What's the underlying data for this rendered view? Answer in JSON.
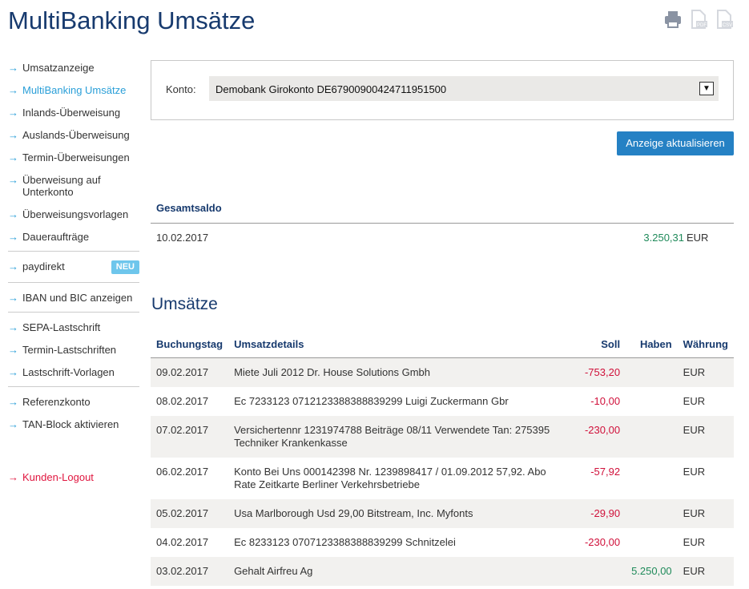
{
  "page": {
    "title": "MultiBanking Umsätze"
  },
  "toolbar": {
    "icons": [
      "print-icon",
      "pdf-icon",
      "csv-icon"
    ],
    "pdf_label": "PDF",
    "csv_label": "CSV"
  },
  "nav": {
    "items": [
      {
        "label": "Umsatzanzeige"
      },
      {
        "label": "MultiBanking Umsätze",
        "active": true
      },
      {
        "label": "Inlands-Überweisung"
      },
      {
        "label": "Auslands-Überweisung"
      },
      {
        "label": "Termin-Überweisungen"
      },
      {
        "label": "Überweisung auf Unterkonto"
      },
      {
        "label": "Überweisungsvorlagen"
      },
      {
        "label": "Daueraufträge"
      },
      {
        "label": "paydirekt",
        "badge": "NEU"
      },
      {
        "label": "IBAN und BIC anzeigen"
      },
      {
        "label": "SEPA-Lastschrift"
      },
      {
        "label": "Termin-Lastschriften"
      },
      {
        "label": "Lastschrift-Vorlagen"
      },
      {
        "label": "Referenzkonto"
      },
      {
        "label": "TAN-Block aktivieren"
      }
    ],
    "logout": "Kunden-Logout"
  },
  "filter": {
    "label": "Konto:",
    "selected": "Demobank Girokonto DE67900900424711951500",
    "button": "Anzeige aktualisieren"
  },
  "saldo": {
    "header": "Gesamtsaldo",
    "date": "10.02.2017",
    "amount": "3.250,31",
    "currency": "EUR"
  },
  "umsaetze": {
    "title": "Umsätze",
    "columns": [
      "Buchungstag",
      "Umsatzdetails",
      "Soll",
      "Haben",
      "Währung"
    ],
    "rows": [
      {
        "date": "09.02.2017",
        "details": "Miete Juli 2012 Dr. House Solutions Gmbh",
        "soll": "-753,20",
        "haben": "",
        "currency": "EUR"
      },
      {
        "date": "08.02.2017",
        "details": "Ec 7233123 0712123388388839299 Luigi Zuckermann Gbr",
        "soll": "-10,00",
        "haben": "",
        "currency": "EUR"
      },
      {
        "date": "07.02.2017",
        "details": "Versichertennr 1231974788 Beiträge 08/11 Verwendete Tan: 275395 Techniker Krankenkasse",
        "soll": "-230,00",
        "haben": "",
        "currency": "EUR"
      },
      {
        "date": "06.02.2017",
        "details": "Konto Bei Uns 000142398 Nr. 1239898417 / 01.09.2012 57,92. Abo Rate Zeitkarte Berliner Verkehrsbetriebe",
        "soll": "-57,92",
        "haben": "",
        "currency": "EUR"
      },
      {
        "date": "05.02.2017",
        "details": "Usa Marlborough Usd 29,00 Bitstream, Inc. Myfonts",
        "soll": "-29,90",
        "haben": "",
        "currency": "EUR"
      },
      {
        "date": "04.02.2017",
        "details": "Ec 8233123 0707123388388839299 Schnitzelei",
        "soll": "-230,00",
        "haben": "",
        "currency": "EUR"
      },
      {
        "date": "03.02.2017",
        "details": "Gehalt Airfreu Ag",
        "soll": "",
        "haben": "5.250,00",
        "currency": "EUR"
      }
    ]
  },
  "colors": {
    "title": "#173a6e",
    "accent": "#2a9fd8",
    "button": "#2581c4",
    "debit": "#d0103a",
    "credit": "#1f8a5a"
  }
}
